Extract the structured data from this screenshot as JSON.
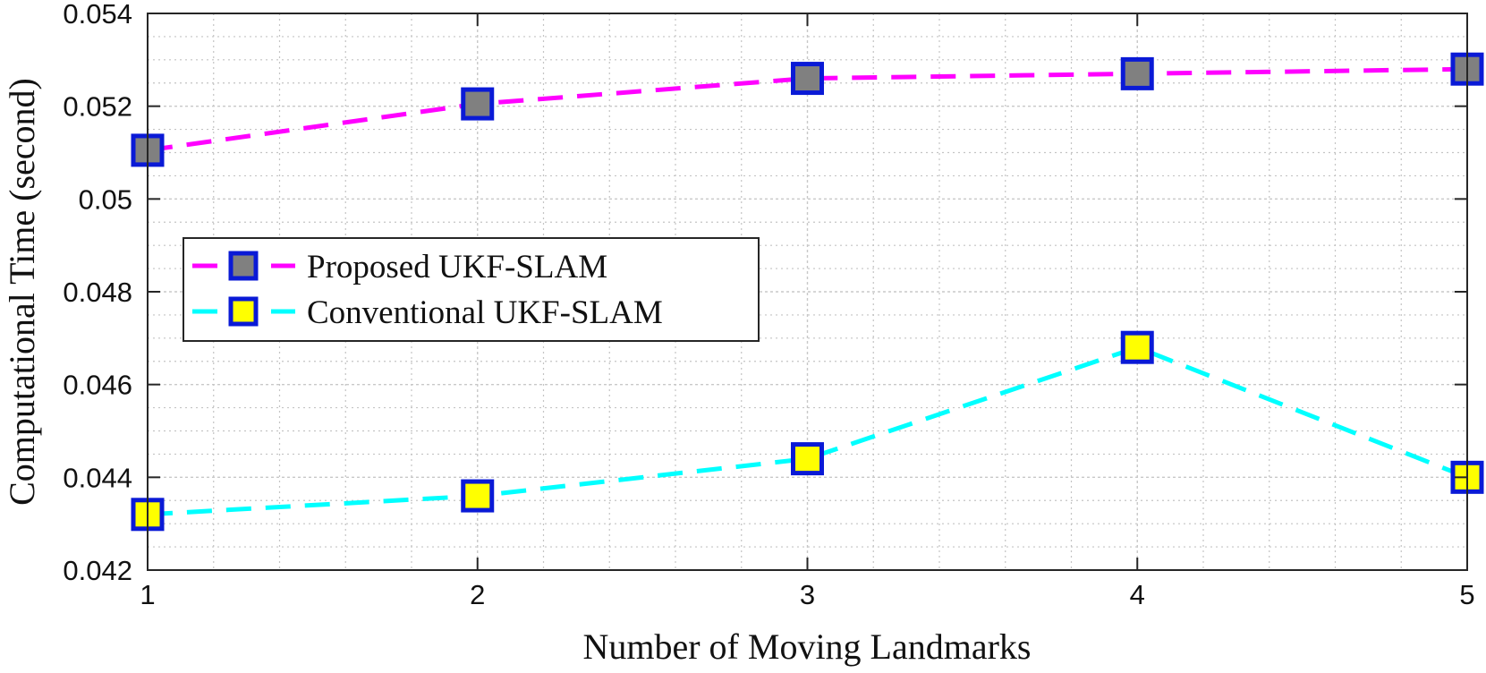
{
  "chart_data": {
    "type": "line",
    "title": "",
    "xlabel": "Number of Moving Landmarks",
    "ylabel": "Computational Time (second)",
    "x": [
      1,
      2,
      3,
      4,
      5
    ],
    "xlim": [
      1,
      5
    ],
    "ylim": [
      0.042,
      0.054
    ],
    "xticks": [
      1,
      2,
      3,
      4,
      5
    ],
    "xtick_labels": [
      "1",
      "2",
      "3",
      "4",
      "5"
    ],
    "yticks": [
      0.042,
      0.044,
      0.046,
      0.048,
      0.05,
      0.052,
      0.054
    ],
    "ytick_labels": [
      "0.042",
      "0.044",
      "0.046",
      "0.048",
      "0.05",
      "0.052",
      "0.054"
    ],
    "grid": true,
    "minor_grid": true,
    "legend_position": "center-left",
    "series": [
      {
        "name": "Proposed UKF-SLAM",
        "values": [
          0.05105,
          0.05205,
          0.0526,
          0.0527,
          0.0528
        ],
        "line_color": "#ff00ff",
        "line_style": "dashed",
        "marker": "square",
        "marker_face": "#808080",
        "marker_edge": "#0a1ad6"
      },
      {
        "name": "Conventional UKF-SLAM",
        "values": [
          0.0432,
          0.0436,
          0.0444,
          0.0468,
          0.044
        ],
        "line_color": "#00ffff",
        "line_style": "dashed",
        "marker": "square",
        "marker_face": "#ffff00",
        "marker_edge": "#0a1ad6"
      }
    ]
  }
}
